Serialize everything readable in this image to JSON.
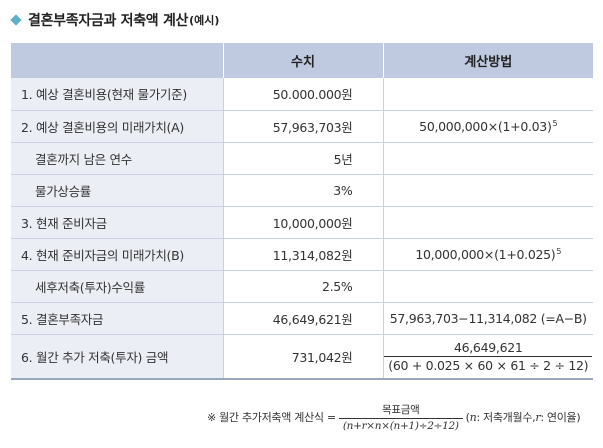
{
  "title": {
    "main": "결혼부족자금과 저축액 계산",
    "sub": "(예시)"
  },
  "header": {
    "col1": "",
    "col2": "수치",
    "col3": "계산방법"
  },
  "rows": [
    {
      "label": "1. 예상 결혼비용(현재 물가기준)",
      "value": "50.000.000원",
      "calc": ""
    },
    {
      "label": "2. 예상 결혼비용의 미래가치(A)",
      "value": "57,963,703원",
      "calc": "50,000,000×(1+0.03)",
      "calc_sup": "5"
    },
    {
      "label": "결혼까지 남은 연수",
      "value": "5년",
      "calc": ""
    },
    {
      "label": "물가상승률",
      "value": "3%",
      "calc": ""
    },
    {
      "label": "3. 현재 준비자금",
      "value": "10,000,000원",
      "calc": ""
    },
    {
      "label": "4. 현재 준비자금의 미래가치(B)",
      "value": "11,314,082원",
      "calc": "10,000,000×(1+0.025)",
      "calc_sup": "5"
    },
    {
      "label": "세후저축(투자)수익률",
      "value": "2.5%",
      "calc": ""
    },
    {
      "label": "5. 결혼부족자금",
      "value": "46,649,621원",
      "calc": "57,963,703−11,314,082 (=A−B)"
    },
    {
      "label": "6. 월간 추가 저축(투자) 금액",
      "value": "731,042원",
      "calc_num": "46,649,621",
      "calc_den": "(60 + 0.025 × 60 × 61 ÷ 2 ÷ 12)"
    }
  ],
  "footnote": {
    "prefix": "※ 월간 추가저축액 계산식 =",
    "num": "목표금액",
    "den": "(n+r×n×(n+1)÷2÷12)",
    "suffix_open": "(",
    "n_var": "n",
    "n_desc": ": 저축개월수, ",
    "r_var": "r",
    "r_desc": ": 연이율)"
  },
  "colors": {
    "accent": "#5fb0c6",
    "header_bg": "#bfc9e0",
    "label_bg": "#eceef5",
    "rule": "#c9d1e1"
  },
  "icons": {
    "title_bullet": "diamond-icon"
  }
}
